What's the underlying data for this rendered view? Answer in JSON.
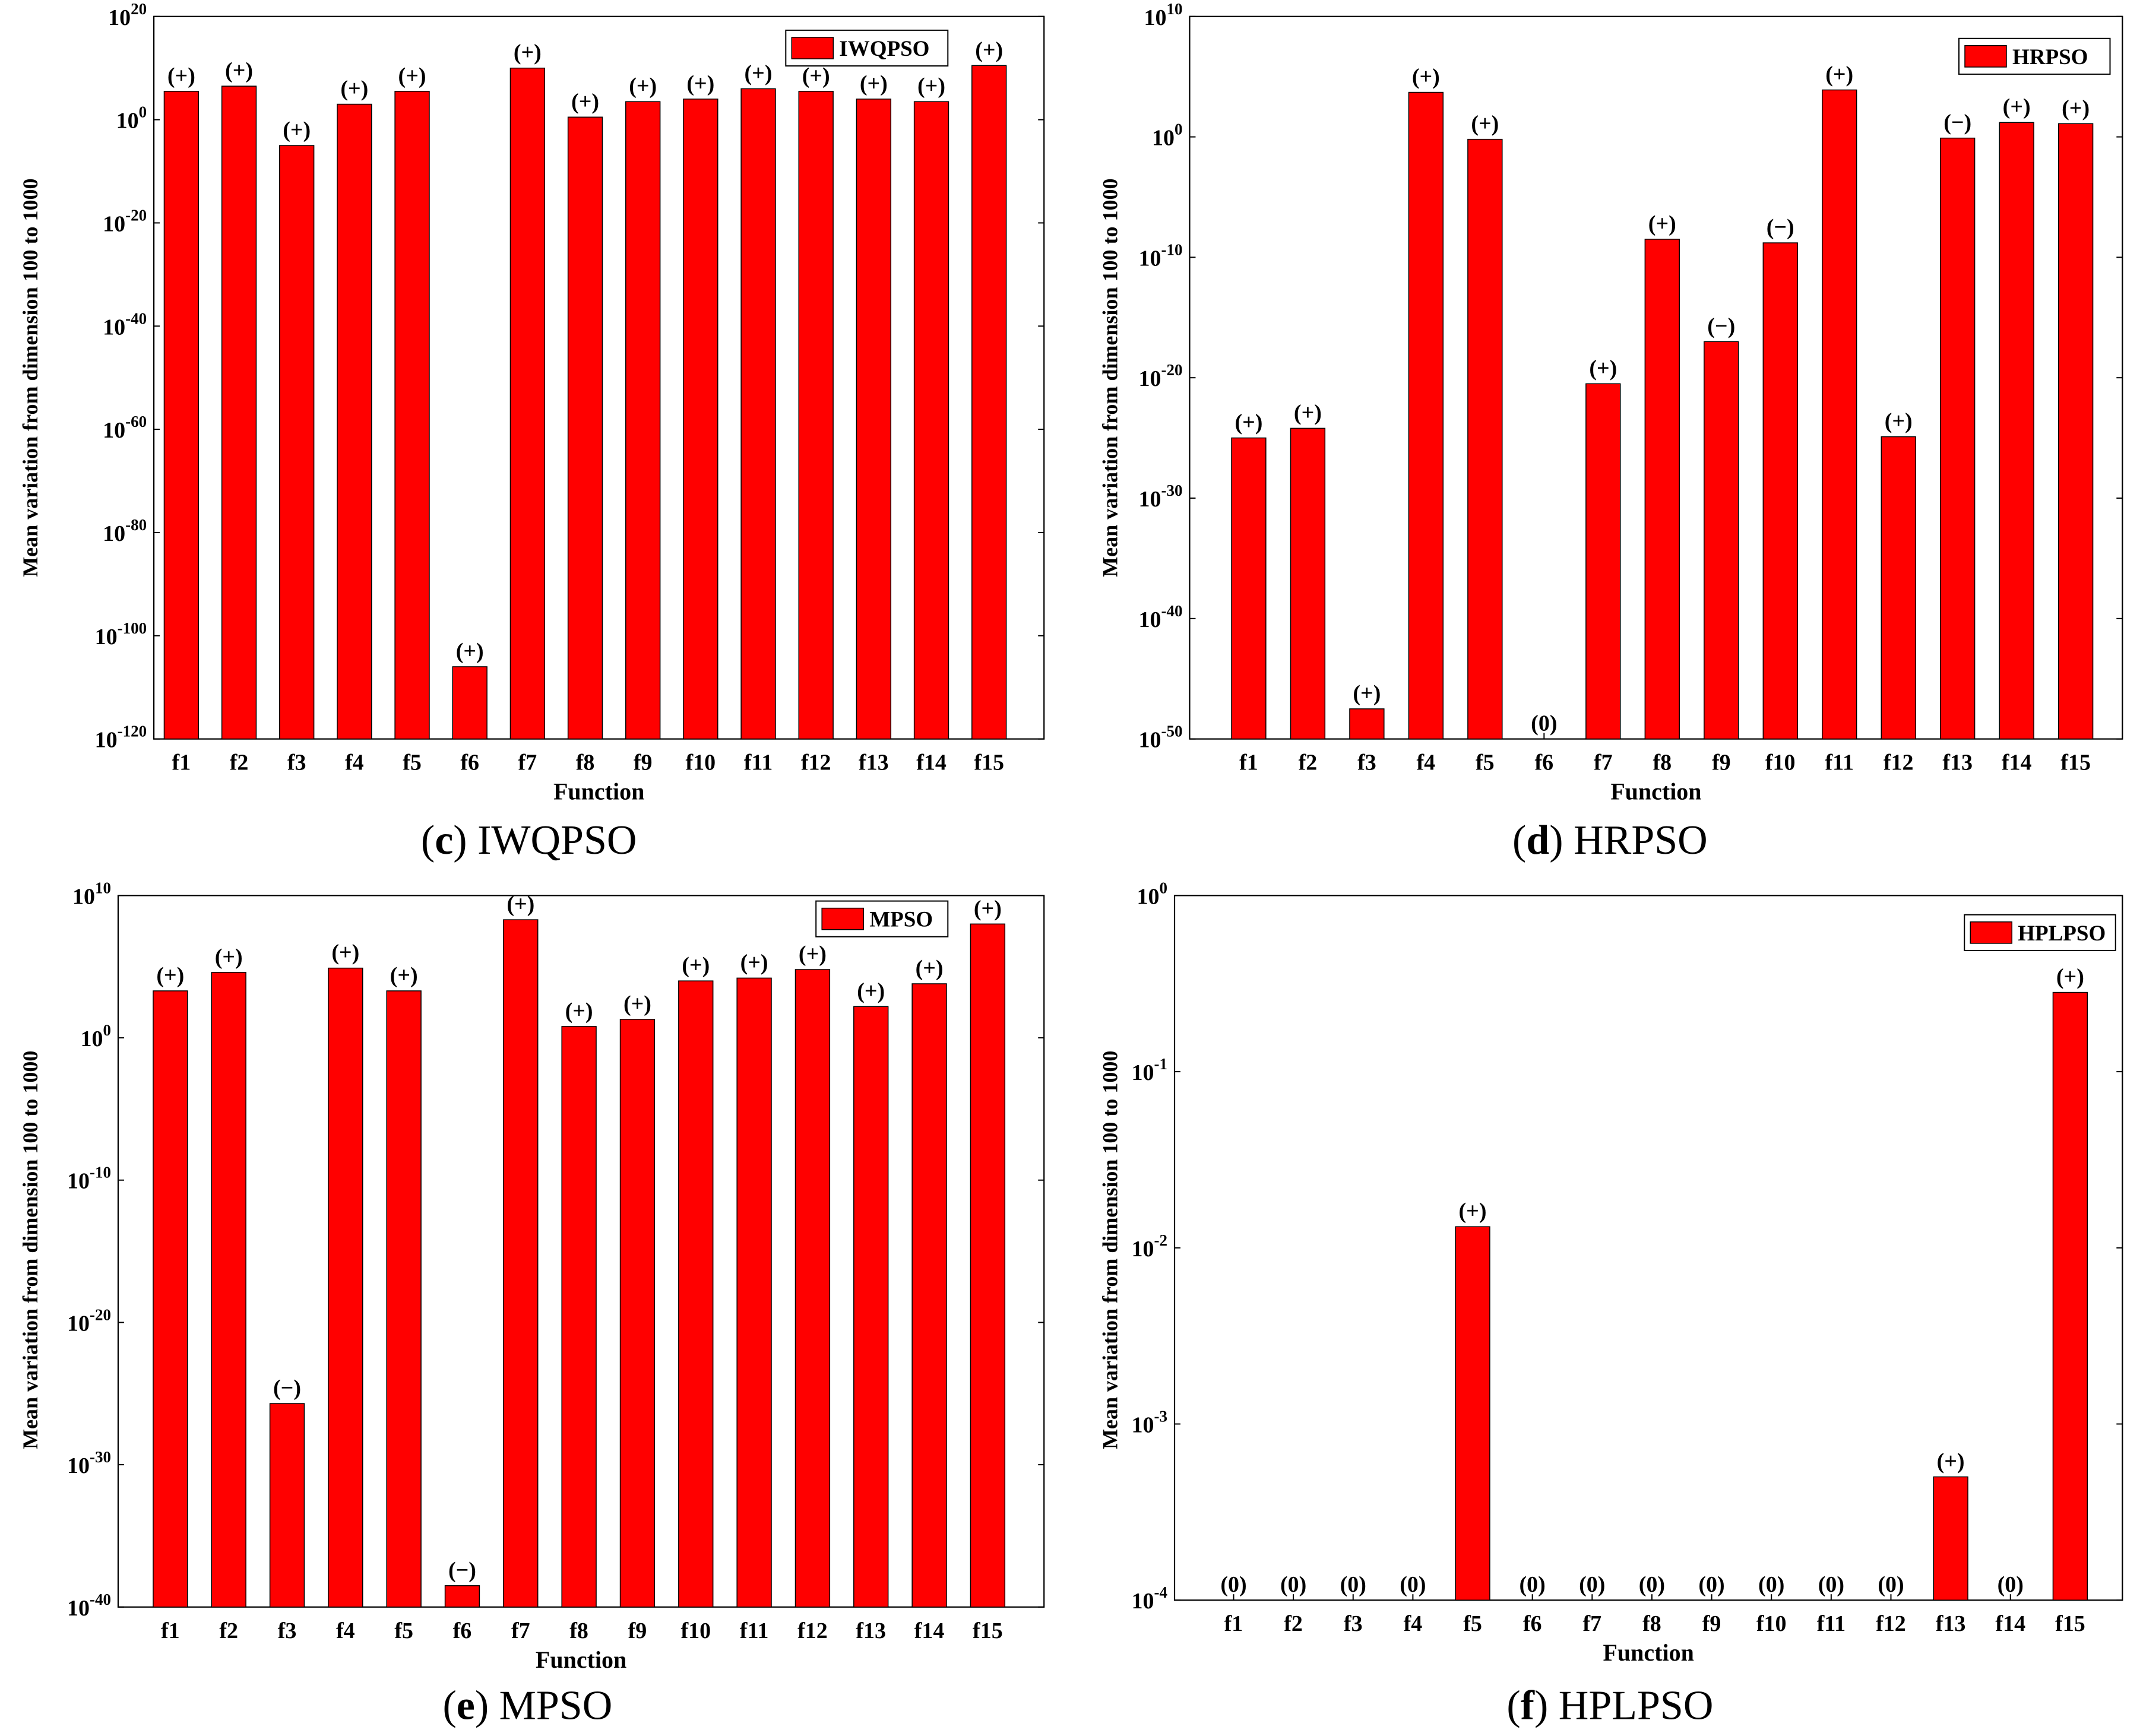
{
  "figure": {
    "bar_color": "#ff0000",
    "bar_edge_color": "#000000"
  },
  "chart_data": [
    {
      "type": "bar",
      "panel": "c",
      "caption_letter": "c",
      "caption_name": "IWQPSO",
      "legend": "IWQPSO",
      "xlabel": "Function",
      "ylabel": "Mean variation from dimension 100 to 1000",
      "yscale": "log",
      "ylim_exp": [
        -120,
        20
      ],
      "ytick_exps": [
        -120,
        -100,
        -80,
        -60,
        -40,
        -20,
        0,
        20
      ],
      "categories": [
        "f1",
        "f2",
        "f3",
        "f4",
        "f5",
        "f6",
        "f7",
        "f8",
        "f9",
        "f10",
        "f11",
        "f12",
        "f13",
        "f14",
        "f15"
      ],
      "log10_values": [
        5.5,
        6.5,
        -5,
        3,
        5.5,
        -106,
        10,
        0.5,
        3.5,
        4,
        6,
        5.5,
        4,
        3.5,
        10.5
      ],
      "significance": [
        "(+)",
        "(+)",
        "(+)",
        "(+)",
        "(+)",
        "(+)",
        "(+)",
        "(+)",
        "(+)",
        "(+)",
        "(+)",
        "(+)",
        "(+)",
        "(+)",
        "(+)"
      ]
    },
    {
      "type": "bar",
      "panel": "d",
      "caption_letter": "d",
      "caption_name": "HRPSO",
      "legend": "HRPSO",
      "xlabel": "Function",
      "ylabel": "Mean variation from dimension 100 to 1000",
      "yscale": "log",
      "ylim_exp": [
        -50,
        10
      ],
      "ytick_exps": [
        -50,
        -40,
        -30,
        -20,
        -10,
        0,
        10
      ],
      "categories": [
        "f1",
        "f2",
        "f3",
        "f4",
        "f5",
        "f6",
        "f7",
        "f8",
        "f9",
        "f10",
        "f11",
        "f12",
        "f13",
        "f14",
        "f15"
      ],
      "log10_values": [
        -25,
        -24.2,
        -47.5,
        3.7,
        -0.2,
        null,
        -20.5,
        -8.5,
        -17,
        -8.8,
        3.9,
        -24.9,
        -0.1,
        1.2,
        1.1
      ],
      "significance": [
        "(+)",
        "(+)",
        "(+)",
        "(+)",
        "(+)",
        "(0)",
        "(+)",
        "(+)",
        "(−)",
        "(−)",
        "(+)",
        "(+)",
        "(−)",
        "(+)",
        "(+)"
      ]
    },
    {
      "type": "bar",
      "panel": "e",
      "caption_letter": "e",
      "caption_name": "MPSO",
      "legend": "MPSO",
      "xlabel": "Function",
      "ylabel": "Mean variation from dimension 100 to 1000",
      "yscale": "log",
      "ylim_exp": [
        -40,
        10
      ],
      "ytick_exps": [
        -40,
        -30,
        -20,
        -10,
        0,
        10
      ],
      "categories": [
        "f1",
        "f2",
        "f3",
        "f4",
        "f5",
        "f6",
        "f7",
        "f8",
        "f9",
        "f10",
        "f11",
        "f12",
        "f13",
        "f14",
        "f15"
      ],
      "log10_values": [
        3.3,
        4.6,
        -25.7,
        4.9,
        3.3,
        -38.5,
        8.3,
        0.8,
        1.3,
        4,
        4.2,
        4.8,
        2.2,
        3.8,
        8
      ],
      "significance": [
        "(+)",
        "(+)",
        "(−)",
        "(+)",
        "(+)",
        "(−)",
        "(+)",
        "(+)",
        "(+)",
        "(+)",
        "(+)",
        "(+)",
        "(+)",
        "(+)",
        "(+)"
      ]
    },
    {
      "type": "bar",
      "panel": "f",
      "caption_letter": "f",
      "caption_name": "HPLPSO",
      "legend": "HPLPSO",
      "xlabel": "Function",
      "ylabel": "Mean variation from dimension 100 to 1000",
      "yscale": "log",
      "ylim_exp": [
        -4,
        0
      ],
      "ytick_exps": [
        -4,
        -3,
        -2,
        -1,
        0
      ],
      "categories": [
        "f1",
        "f2",
        "f3",
        "f4",
        "f5",
        "f6",
        "f7",
        "f8",
        "f9",
        "f10",
        "f11",
        "f12",
        "f13",
        "f14",
        "f15"
      ],
      "log10_values": [
        null,
        null,
        null,
        null,
        -1.88,
        null,
        null,
        null,
        null,
        null,
        null,
        null,
        -3.3,
        null,
        -0.55
      ],
      "significance": [
        "(0)",
        "(0)",
        "(0)",
        "(0)",
        "(+)",
        "(0)",
        "(0)",
        "(0)",
        "(0)",
        "(0)",
        "(0)",
        "(0)",
        "(+)",
        "(0)",
        "(+)"
      ]
    }
  ]
}
